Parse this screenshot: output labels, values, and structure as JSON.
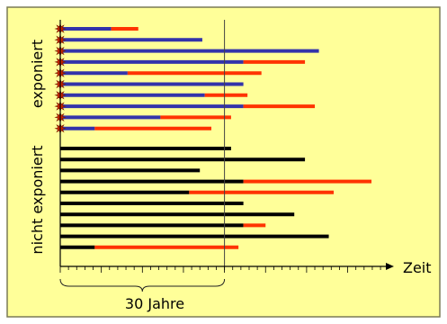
{
  "labels": {
    "exposed": "exponiert",
    "not_exposed": "nicht exponiert",
    "time_axis": "Zeit",
    "window": "30 Jahre"
  },
  "colors": {
    "background": "#FFFF99",
    "border": "#7a7a55",
    "exposed_phase": "#3333AA",
    "event_phase": "#FF3300",
    "unexposed_phase": "#000000",
    "star": "#CC2200",
    "reference_line": "#444444",
    "axis": "#000000"
  },
  "icons": {
    "exposure_marker": "star-burst-icon"
  },
  "chart_data": {
    "type": "timeline",
    "time_unit": "tick",
    "reference_time": 20,
    "window_start": 0,
    "window_end": 20,
    "axis_max": 40,
    "exposed": [
      {
        "start": 0,
        "change": 6.2,
        "end": 9.5
      },
      {
        "start": 0,
        "change": 17.3,
        "end": 17.3
      },
      {
        "start": 0,
        "change": 31.5,
        "end": 31.5
      },
      {
        "start": 0,
        "change": 22.3,
        "end": 29.8
      },
      {
        "start": 0,
        "change": 8.2,
        "end": 24.5
      },
      {
        "start": 0,
        "change": 22.3,
        "end": 22.3
      },
      {
        "start": 0,
        "change": 17.6,
        "end": 22.8
      },
      {
        "start": 0,
        "change": 22.3,
        "end": 31.0
      },
      {
        "start": 0,
        "change": 12.2,
        "end": 20.8
      },
      {
        "start": 0,
        "change": 4.2,
        "end": 18.4
      }
    ],
    "not_exposed": [
      {
        "start": 0,
        "change": 20.8,
        "end": 20.8
      },
      {
        "start": 0,
        "change": 29.8,
        "end": 29.8
      },
      {
        "start": 0,
        "change": 17.0,
        "end": 17.0
      },
      {
        "start": 0,
        "change": 22.3,
        "end": 37.9
      },
      {
        "start": 0,
        "change": 15.7,
        "end": 33.3
      },
      {
        "start": 0,
        "change": 22.3,
        "end": 22.3
      },
      {
        "start": 0,
        "change": 28.5,
        "end": 28.5
      },
      {
        "start": 0,
        "change": 22.3,
        "end": 25.0
      },
      {
        "start": 0,
        "change": 32.7,
        "end": 32.7
      },
      {
        "start": 0,
        "change": 4.2,
        "end": 21.7
      }
    ]
  }
}
